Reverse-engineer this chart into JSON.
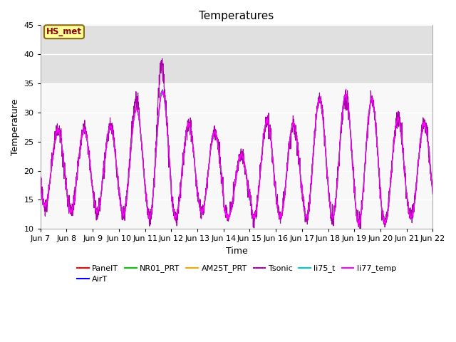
{
  "title": "Temperatures",
  "xlabel": "Time",
  "ylabel": "Temperature",
  "ylim": [
    10,
    45
  ],
  "xlim": [
    0,
    15
  ],
  "annotation_text": "HS_met",
  "annotation_color": "#8B0000",
  "annotation_bg": "#FFFF99",
  "annotation_border": "#8B6914",
  "bg_band_color": "#E0E0E0",
  "bg_band_ymin": 35,
  "bg_band_ymax": 45,
  "legend_entries": [
    "PanelT",
    "AirT",
    "NR01_PRT",
    "AM25T_PRT",
    "Tsonic",
    "li75_t",
    "li77_temp"
  ],
  "legend_colors": [
    "#FF0000",
    "#0000FF",
    "#00CC00",
    "#FFA500",
    "#AA00AA",
    "#00CCCC",
    "#FF00FF"
  ],
  "tick_labels": [
    "Jun 7",
    "Jun 8",
    "Jun 9",
    "Jun 10",
    "Jun 11",
    "Jun 12",
    "Jun 13",
    "Jun 14",
    "Jun 15",
    "Jun 16",
    "Jun 17",
    "Jun 18",
    "Jun 19",
    "Jun 20",
    "Jun 21",
    "Jun 22"
  ],
  "num_days": 15,
  "seed": 42,
  "figsize": [
    6.4,
    4.8
  ],
  "dpi": 100
}
